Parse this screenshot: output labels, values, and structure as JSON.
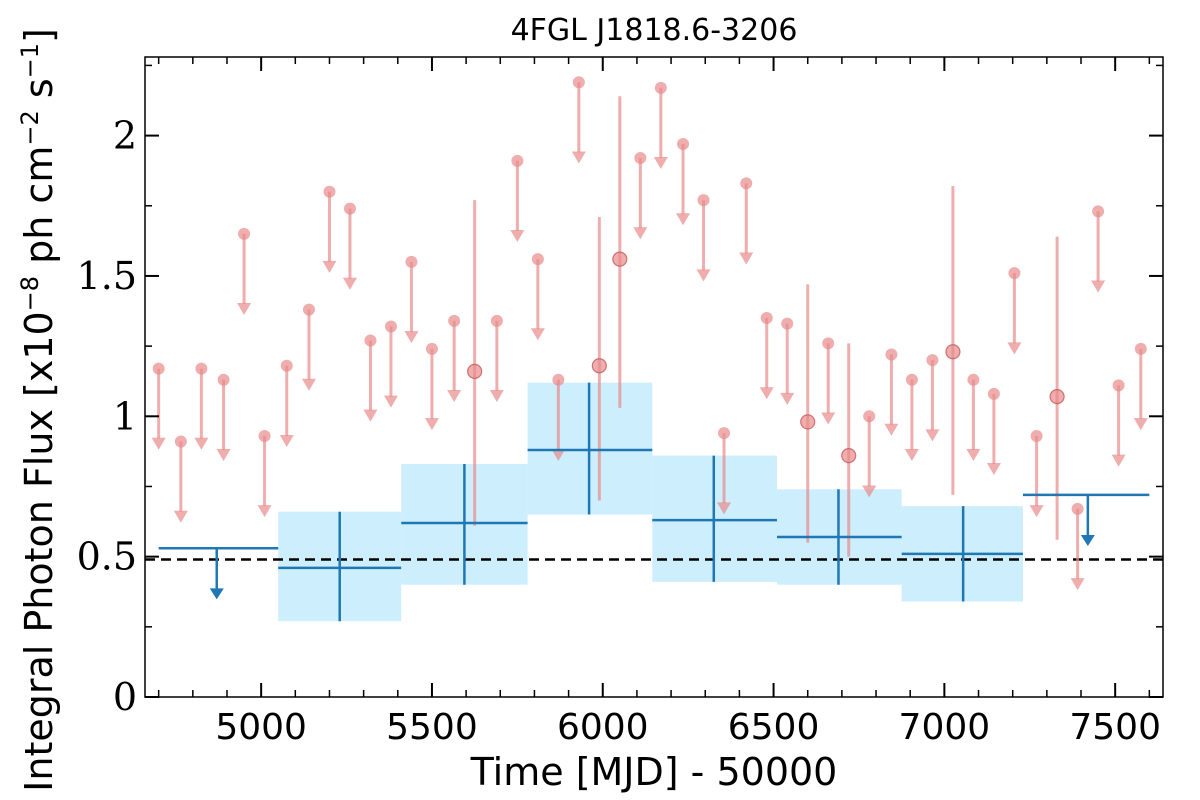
{
  "chart_data": {
    "type": "scatter",
    "title": "4FGL J1818.6-3206",
    "xlabel": "Time [MJD] - 50000",
    "ylabel": "Integral Photon Flux [x10$^{-8}$ ph cm$^{-2}$ s$^{-1}$]",
    "ylabel_main": "Integral Photon Flux [x10",
    "ylabel_exp1": "−8",
    "ylabel_mid": " ph cm",
    "ylabel_exp2": "−2",
    "ylabel_mid2": " s",
    "ylabel_exp3": "−1",
    "ylabel_end": "]",
    "xlim": [
      4660,
      7640
    ],
    "ylim": [
      0,
      2.28
    ],
    "xticks": [
      5000,
      5500,
      6000,
      6500,
      7000,
      7500
    ],
    "xtick_labels": [
      "5000",
      "5500",
      "6000",
      "6500",
      "7000",
      "7500"
    ],
    "yticks": [
      0,
      0.5,
      1,
      1.5,
      2
    ],
    "ytick_labels": [
      "0",
      "0.5",
      "1",
      "1.5",
      "2"
    ],
    "reference_line": {
      "y": 0.49,
      "style": "dashed",
      "color": "#000000"
    },
    "colors": {
      "short_bins": "#e88a8a",
      "long_bins": "#1f77b4",
      "long_band": "#cdeefc"
    },
    "short_bins": {
      "upper_limits": [
        {
          "x": 4700,
          "y": 1.17
        },
        {
          "x": 4765,
          "y": 0.91
        },
        {
          "x": 4825,
          "y": 1.17
        },
        {
          "x": 4890,
          "y": 1.13
        },
        {
          "x": 4950,
          "y": 1.65
        },
        {
          "x": 5010,
          "y": 0.93
        },
        {
          "x": 5075,
          "y": 1.18
        },
        {
          "x": 5140,
          "y": 1.38
        },
        {
          "x": 5200,
          "y": 1.8
        },
        {
          "x": 5260,
          "y": 1.74
        },
        {
          "x": 5320,
          "y": 1.27
        },
        {
          "x": 5380,
          "y": 1.32
        },
        {
          "x": 5440,
          "y": 1.55
        },
        {
          "x": 5500,
          "y": 1.24
        },
        {
          "x": 5565,
          "y": 1.34
        },
        {
          "x": 5690,
          "y": 1.34
        },
        {
          "x": 5750,
          "y": 1.91
        },
        {
          "x": 5810,
          "y": 1.56
        },
        {
          "x": 5870,
          "y": 1.13
        },
        {
          "x": 5930,
          "y": 2.19
        },
        {
          "x": 6110,
          "y": 1.92
        },
        {
          "x": 6170,
          "y": 2.17
        },
        {
          "x": 6235,
          "y": 1.97
        },
        {
          "x": 6295,
          "y": 1.77
        },
        {
          "x": 6355,
          "y": 0.94
        },
        {
          "x": 6420,
          "y": 1.83
        },
        {
          "x": 6480,
          "y": 1.35
        },
        {
          "x": 6540,
          "y": 1.33
        },
        {
          "x": 6660,
          "y": 1.26
        },
        {
          "x": 6780,
          "y": 1.0
        },
        {
          "x": 6845,
          "y": 1.22
        },
        {
          "x": 6905,
          "y": 1.13
        },
        {
          "x": 6965,
          "y": 1.2
        },
        {
          "x": 7085,
          "y": 1.13
        },
        {
          "x": 7145,
          "y": 1.08
        },
        {
          "x": 7205,
          "y": 1.51
        },
        {
          "x": 7270,
          "y": 0.93
        },
        {
          "x": 7390,
          "y": 0.67
        },
        {
          "x": 7450,
          "y": 1.73
        },
        {
          "x": 7510,
          "y": 1.11
        },
        {
          "x": 7575,
          "y": 1.24
        }
      ],
      "detections": [
        {
          "x": 5625,
          "y": 1.16,
          "ylo": 0.61,
          "yhi": 1.77
        },
        {
          "x": 5990,
          "y": 1.18,
          "ylo": 0.7,
          "yhi": 1.71
        },
        {
          "x": 6050,
          "y": 1.56,
          "ylo": 1.03,
          "yhi": 2.14
        },
        {
          "x": 6600,
          "y": 0.98,
          "ylo": 0.55,
          "yhi": 1.47
        },
        {
          "x": 6720,
          "y": 0.86,
          "ylo": 0.5,
          "yhi": 1.26
        },
        {
          "x": 7025,
          "y": 1.23,
          "ylo": 0.72,
          "yhi": 1.82
        },
        {
          "x": 7330,
          "y": 1.07,
          "ylo": 0.56,
          "yhi": 1.64
        }
      ]
    },
    "long_bins": {
      "upper_limits": [
        {
          "x0": 4700,
          "x1": 5050,
          "y": 0.53,
          "xm": 4870
        },
        {
          "x0": 7230,
          "x1": 7600,
          "y": 0.72,
          "xm": 7420
        }
      ],
      "detections": [
        {
          "x0": 5050,
          "x1": 5410,
          "xm": 5230,
          "y": 0.46,
          "ylo": 0.27,
          "yhi": 0.66
        },
        {
          "x0": 5410,
          "x1": 5780,
          "xm": 5595,
          "y": 0.62,
          "ylo": 0.4,
          "yhi": 0.83
        },
        {
          "x0": 5780,
          "x1": 6145,
          "xm": 5960,
          "y": 0.88,
          "ylo": 0.65,
          "yhi": 1.12
        },
        {
          "x0": 6145,
          "x1": 6510,
          "xm": 6325,
          "y": 0.63,
          "ylo": 0.41,
          "yhi": 0.86
        },
        {
          "x0": 6510,
          "x1": 6875,
          "xm": 6690,
          "y": 0.57,
          "ylo": 0.4,
          "yhi": 0.74
        },
        {
          "x0": 6875,
          "x1": 7230,
          "xm": 7055,
          "y": 0.51,
          "ylo": 0.34,
          "yhi": 0.68
        }
      ]
    },
    "grid": false,
    "legend": "none"
  }
}
